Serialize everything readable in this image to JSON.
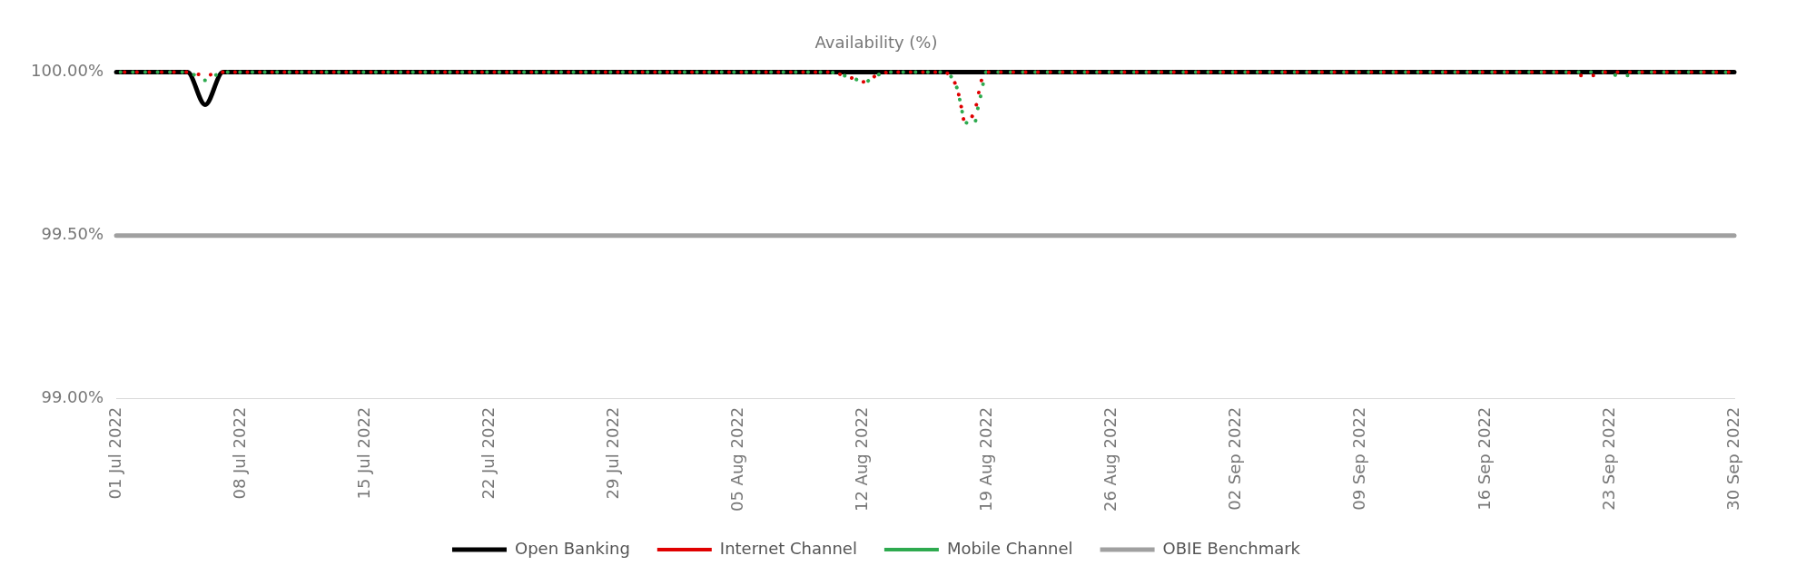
{
  "chart_data": {
    "type": "line",
    "title": "Availability (%)",
    "xlim": [
      "2022-07-01",
      "2022-09-30"
    ],
    "xticks": [
      {
        "value": "2022-07-01",
        "label": "01 Jul 2022"
      },
      {
        "value": "2022-07-08",
        "label": "08 Jul 2022"
      },
      {
        "value": "2022-07-15",
        "label": "15 Jul 2022"
      },
      {
        "value": "2022-07-22",
        "label": "22 Jul 2022"
      },
      {
        "value": "2022-07-29",
        "label": "29 Jul 2022"
      },
      {
        "value": "2022-08-05",
        "label": "05 Aug 2022"
      },
      {
        "value": "2022-08-12",
        "label": "12 Aug 2022"
      },
      {
        "value": "2022-08-19",
        "label": "19 Aug 2022"
      },
      {
        "value": "2022-08-26",
        "label": "26 Aug 2022"
      },
      {
        "value": "2022-09-02",
        "label": "02 Sep 2022"
      },
      {
        "value": "2022-09-09",
        "label": "09 Sep 2022"
      },
      {
        "value": "2022-09-16",
        "label": "16 Sep 2022"
      },
      {
        "value": "2022-09-23",
        "label": "23 Sep 2022"
      },
      {
        "value": "2022-09-30",
        "label": "30 Sep 2022"
      }
    ],
    "ylim": [
      99,
      100
    ],
    "yticks": [
      {
        "value": 99,
        "label": "99.00%"
      },
      {
        "value": 99.5,
        "label": "99.50%"
      },
      {
        "value": 100,
        "label": "100.00%"
      }
    ],
    "legend": "bottom",
    "grid": false,
    "marker": "none",
    "series": [
      {
        "name": "Open Banking",
        "color": "#000000",
        "line_style": "solid",
        "x": [
          "2022-07-01",
          "2022-07-05",
          "2022-07-06",
          "2022-07-07",
          "2022-09-30"
        ],
        "values": [
          100,
          100,
          99.9,
          100,
          100
        ]
      },
      {
        "name": "Internet Channel",
        "color": "#e00000",
        "line_style": "dotted",
        "x": [
          "2022-07-01",
          "2022-07-05",
          "2022-07-06",
          "2022-07-07",
          "2022-08-10",
          "2022-08-11T12:00",
          "2022-08-12T02:00",
          "2022-08-12T18:00",
          "2022-08-13T12:00",
          "2022-08-16T12:00",
          "2022-08-17T07:00",
          "2022-08-17T12:00",
          "2022-08-17T17:00",
          "2022-08-18T02:00",
          "2022-08-18T10:00",
          "2022-08-18T14:00",
          "2022-08-18T22:00",
          "2022-09-20T12:00",
          "2022-09-21T10:00",
          "2022-09-22T02:00",
          "2022-09-22T18:00",
          "2022-09-30"
        ],
        "values": [
          100,
          100,
          99.99,
          100,
          100,
          99.98,
          99.97,
          99.99,
          100,
          100,
          99.95,
          99.9,
          99.85,
          99.86,
          99.91,
          99.96,
          100,
          100,
          99.99,
          99.99,
          100,
          100
        ]
      },
      {
        "name": "Mobile Channel",
        "color": "#2eaa4f",
        "line_style": "dotted",
        "x": [
          "2022-07-01",
          "2022-07-05",
          "2022-07-06",
          "2022-07-07",
          "2022-08-10",
          "2022-08-11T12:00",
          "2022-08-12T02:00",
          "2022-08-12T18:00",
          "2022-08-13T12:00",
          "2022-08-16T12:00",
          "2022-08-17T07:00",
          "2022-08-17T12:00",
          "2022-08-17T17:00",
          "2022-08-18T06:00",
          "2022-08-18T11:00",
          "2022-08-18T16:00",
          "2022-08-18T22:00",
          "2022-09-22T18:00",
          "2022-09-23T11:00",
          "2022-09-24T03:00",
          "2022-09-24T18:00",
          "2022-09-29T12:00",
          "2022-09-29T20:00",
          "2022-09-30"
        ],
        "values": [
          100,
          100,
          99.975,
          100,
          100,
          99.98,
          99.97,
          99.99,
          100,
          100,
          99.95,
          99.9,
          99.85,
          99.84,
          99.89,
          99.94,
          100,
          100,
          99.99,
          99.99,
          100,
          100,
          99.99,
          100
        ]
      },
      {
        "name": "OBIE Benchmark",
        "color": "#a0a0a0",
        "line_style": "solid",
        "x": [
          "2022-07-01",
          "2022-09-30"
        ],
        "values": [
          99.5,
          99.5
        ]
      }
    ]
  }
}
